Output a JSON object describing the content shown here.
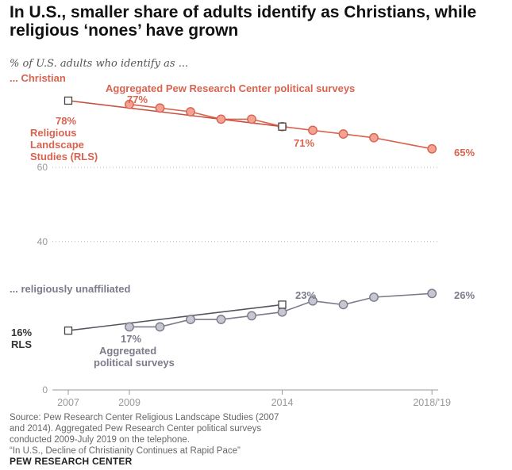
{
  "title": "In U.S., smaller share of adults identify as Christians, while religious ‘nones’ have grown",
  "subtitle": "% of U.S. adults who identify as ...",
  "chart_data": {
    "type": "line",
    "ylabel": "",
    "xlabel": "",
    "ylim": [
      0,
      80
    ],
    "xlim": [
      2007,
      2019
    ],
    "y_ticks": [
      0,
      40,
      60
    ],
    "y_tick_labels": [
      "0",
      "40",
      "60"
    ],
    "x_ticks": [
      2007,
      2009,
      2014,
      2019
    ],
    "x_tick_labels": [
      "2007",
      "2009",
      "2014",
      "2018/'19"
    ],
    "grid": "dotted",
    "groups": [
      {
        "key": "christian",
        "label": "... Christian",
        "color": "#d9634f",
        "series": [
          {
            "name": "Aggregated Pew Research Center political surveys",
            "marker": "circle",
            "x": [
              2009,
              2010,
              2011,
              2012,
              2013,
              2014,
              2015,
              2016,
              2017,
              2018.9
            ],
            "y": [
              77,
              76,
              75,
              73,
              73,
              71,
              70,
              69,
              68,
              65
            ]
          },
          {
            "name": "Religious Landscape Studies (RLS)",
            "marker": "square",
            "x": [
              2007,
              2014
            ],
            "y": [
              78,
              71
            ]
          }
        ]
      },
      {
        "key": "unaffiliated",
        "label": "... religiously unaffiliated",
        "color": "#7b7b8c",
        "series": [
          {
            "name": "Aggregated political surveys",
            "marker": "circle",
            "x": [
              2009,
              2010,
              2011,
              2012,
              2013,
              2014,
              2015,
              2016,
              2017,
              2018.9
            ],
            "y": [
              17,
              17,
              19,
              19,
              20,
              21,
              24,
              23,
              25,
              26
            ]
          },
          {
            "name": "RLS",
            "marker": "square",
            "x": [
              2007,
              2014
            ],
            "y": [
              16,
              23
            ]
          }
        ]
      }
    ],
    "annotations": [
      {
        "text": "Aggregated Pew Research Center political surveys",
        "group": "christian"
      },
      {
        "text": "77%",
        "group": "christian"
      },
      {
        "text": "78%",
        "group": "christian"
      },
      {
        "text": "Religious",
        "group": "christian"
      },
      {
        "text": "Landscape",
        "group": "christian"
      },
      {
        "text": "Studies (RLS)",
        "group": "christian"
      },
      {
        "text": "71%",
        "group": "christian"
      },
      {
        "text": "65%",
        "group": "christian"
      },
      {
        "text": "23%",
        "group": "unaffiliated"
      },
      {
        "text": "26%",
        "group": "unaffiliated"
      },
      {
        "text": "16%",
        "group": "unaffiliated"
      },
      {
        "text": "RLS",
        "group": "unaffiliated"
      },
      {
        "text": "17%",
        "group": "unaffiliated"
      },
      {
        "text": "Aggregated",
        "group": "unaffiliated"
      },
      {
        "text": "political surveys",
        "group": "unaffiliated"
      }
    ]
  },
  "source": {
    "lines": [
      "Source: Pew Research Center Religious Landscape Studies (2007",
      "and 2014). Aggregated Pew Research Center political surveys",
      "conducted 2009-July 2019 on the telephone.",
      "“In U.S., Decline of Christianity Continues at Rapid Pace”"
    ]
  },
  "brand": "PEW RESEARCH CENTER"
}
